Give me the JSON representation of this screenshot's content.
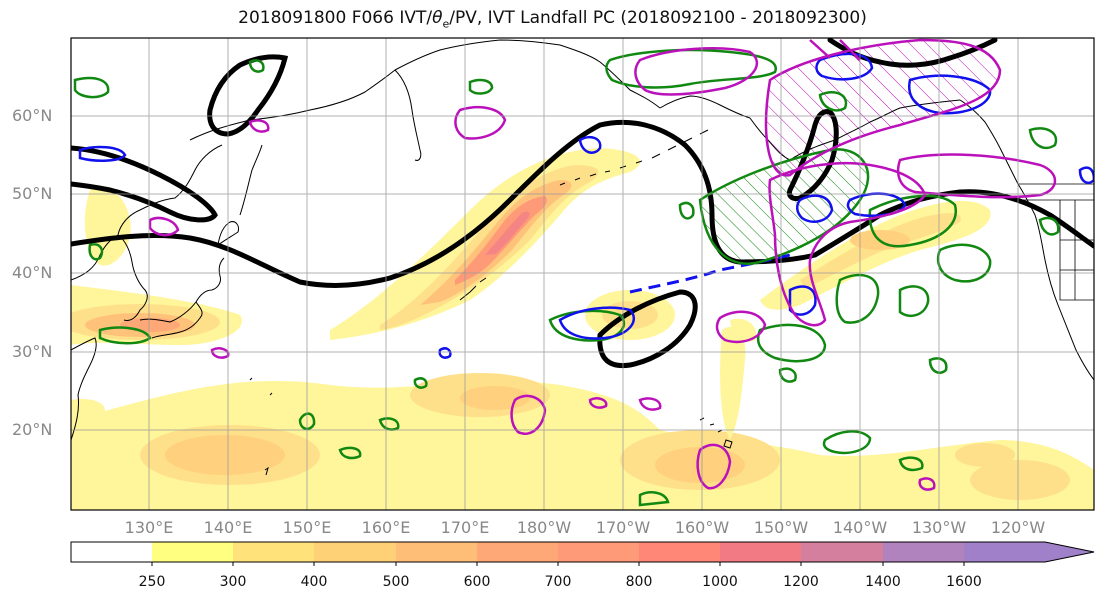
{
  "title": {
    "prefix": "2018091800 F066 IVT/",
    "theta": "θ",
    "theta_sub": "e",
    "suffix": "/PV, IVT Landfall PC (2018092100 - 2018092300)"
  },
  "map": {
    "lat_labels": [
      "60°N",
      "50°N",
      "40°N",
      "30°N",
      "20°N"
    ],
    "lon_labels": [
      "130°E",
      "140°E",
      "150°E",
      "160°E",
      "170°E",
      "180°W",
      "170°W",
      "160°W",
      "150°W",
      "140°W",
      "130°W",
      "120°W"
    ],
    "colors": {
      "ivt": "#fde96b",
      "contour_black": "#000000",
      "contour_green": "#118811",
      "contour_blue": "#1111ee",
      "contour_magenta": "#bb11bb"
    }
  },
  "colorbar": {
    "ticks": [
      "250",
      "300",
      "400",
      "500",
      "600",
      "700",
      "800",
      "1000",
      "1200",
      "1400",
      "1600"
    ],
    "colors": [
      "#ffffff",
      "#ffff80",
      "#ffe27a",
      "#ffd177",
      "#ffbe78",
      "#ffa877",
      "#ff9a78",
      "#ff8778",
      "#f27a84",
      "#d57f9e",
      "#b083bf",
      "#a080c8"
    ]
  }
}
